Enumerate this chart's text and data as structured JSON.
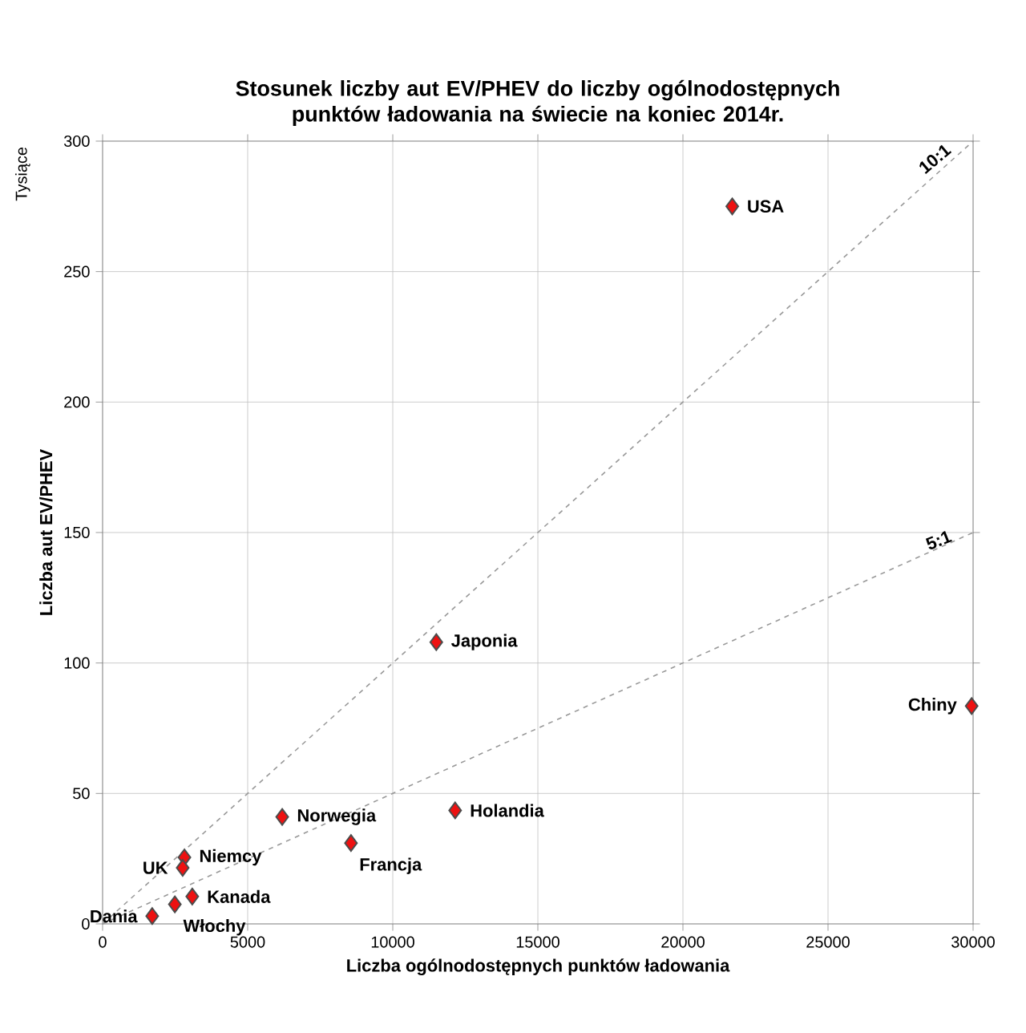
{
  "chart_data": {
    "type": "scatter",
    "title": "Stosunek liczby aut EV/PHEV do liczby ogólnodostępnych punktów ładowania na świecie na koniec 2014r.",
    "xlabel": "Liczba ogólnodostępnych punktów ładowania",
    "ylabel": "Liczba aut EV/PHEV",
    "xlim": [
      0,
      30000
    ],
    "ylim": [
      0,
      300
    ],
    "xticks": [
      0,
      5000,
      10000,
      15000,
      20000,
      25000,
      30000
    ],
    "yticks": [
      0,
      50,
      100,
      150,
      200,
      250,
      300
    ],
    "grid": true,
    "marker": "diamond",
    "series": [
      {
        "type": "line",
        "name": "10:1",
        "color": "#999999",
        "line_style": "dashed",
        "marker": "none",
        "x": [
          0,
          30000
        ],
        "values": [
          0,
          300
        ]
      },
      {
        "type": "line",
        "name": "5:1",
        "color": "#999999",
        "line_style": "dashed",
        "marker": "none",
        "x": [
          0,
          30000
        ],
        "values": [
          0,
          150
        ]
      },
      {
        "color": "#ee1111",
        "x": [
          21700,
          11500,
          29950,
          12150,
          6190,
          8560,
          2820,
          2760,
          3090,
          2490,
          1710
        ],
        "values": [
          275,
          108,
          83.5,
          43.5,
          41,
          31,
          25.5,
          21.5,
          10.5,
          7.5,
          3
        ]
      }
    ],
    "annotations": [
      "Tysiące",
      {
        "text": "USA",
        "x": 21700,
        "y": 275
      },
      {
        "text": "Japonia",
        "x": 11500,
        "y": 108
      },
      {
        "text": "Chiny",
        "x": 29950,
        "y": 83.5
      },
      {
        "text": "Holandia",
        "x": 12150,
        "y": 43.5
      },
      {
        "text": "Norwegia",
        "x": 6190,
        "y": 41
      },
      {
        "text": "Francja",
        "x": 8560,
        "y": 31
      },
      {
        "text": "Niemcy",
        "x": 2820,
        "y": 25.5
      },
      {
        "text": "UK",
        "x": 2760,
        "y": 21.5
      },
      {
        "text": "Kanada",
        "x": 3090,
        "y": 10.5
      },
      {
        "text": "Włochy",
        "x": 2490,
        "y": 7.5
      },
      {
        "text": "Dania",
        "x": 1710,
        "y": 3
      }
    ]
  }
}
